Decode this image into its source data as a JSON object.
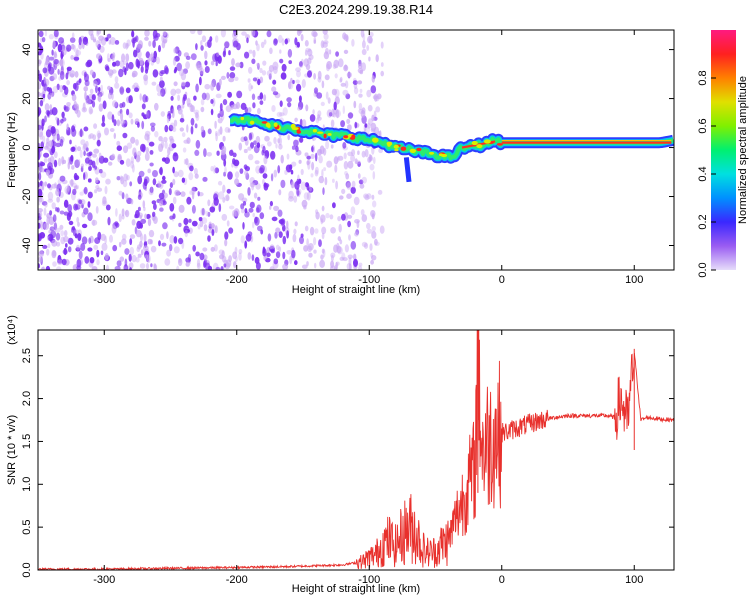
{
  "title": "C2E3.2024.299.19.38.R14",
  "colors": {
    "signal": "#e8302c",
    "noise_purple": "#7a2cf0",
    "noise_light": "#c9a6f4"
  },
  "chart_data": [
    {
      "type": "heatmap",
      "title": "C2E3.2024.299.19.38.R14",
      "xlabel": "Height of straight line (km)",
      "ylabel": "Frequency (Hz)",
      "xlim": [
        -350,
        130
      ],
      "ylim": [
        -50,
        48
      ],
      "xticks": [
        -300,
        -200,
        -100,
        0,
        100
      ],
      "yticks": [
        -40,
        -20,
        0,
        20,
        40
      ],
      "colorbar": {
        "label": "Normalized spectral amplitude",
        "range": [
          0,
          1
        ],
        "ticks": [
          "0.0",
          "0.2",
          "0.4",
          "0.6",
          "0.8"
        ],
        "colormap": [
          "#d9c8f8",
          "#7a2cf0",
          "#1a3bff",
          "#00c8ff",
          "#00f080",
          "#b6f000",
          "#ffd000",
          "#ff6a00",
          "#ff1040",
          "#ff1a80"
        ]
      },
      "track": {
        "x": [
          -205,
          -190,
          -175,
          -160,
          -150,
          -140,
          -130,
          -120,
          -110,
          -100,
          -90,
          -80,
          -70,
          -60,
          -50,
          -40,
          -35,
          -30,
          -25,
          -20,
          -15,
          -10,
          -5,
          0,
          20,
          40,
          60,
          80,
          100,
          120,
          130
        ],
        "y": [
          12,
          11,
          9,
          8,
          7,
          6,
          5,
          5,
          4,
          3,
          2,
          0,
          -1,
          -2,
          -3,
          -4,
          -3,
          0,
          0,
          1,
          1,
          2,
          3,
          2,
          2,
          2,
          2,
          2,
          2,
          2,
          3
        ]
      }
    },
    {
      "type": "line",
      "xlabel": "Height of straight line (km)",
      "ylabel": "SNR (10 * v/v)",
      "y_multiplier": "(x10⁴)",
      "xlim": [
        -350,
        130
      ],
      "ylim": [
        0,
        2.8
      ],
      "xticks": [
        -300,
        -200,
        -100,
        0,
        100
      ],
      "yticks": [
        "0.0",
        "0.5",
        "1.0",
        "1.5",
        "2.0",
        "2.5"
      ],
      "series": [
        {
          "color": "#e8302c",
          "x": [
            -350,
            -300,
            -250,
            -200,
            -160,
            -120,
            -105,
            -100,
            -95,
            -90,
            -85,
            -80,
            -75,
            -70,
            -65,
            -60,
            -55,
            -50,
            -45,
            -40,
            -35,
            -30,
            -25,
            -20,
            -18,
            -15,
            -10,
            -5,
            0,
            5,
            10,
            20,
            30,
            40,
            50,
            60,
            70,
            80,
            85,
            90,
            95,
            100,
            105,
            110,
            120,
            130
          ],
          "y": [
            0.01,
            0.01,
            0.02,
            0.03,
            0.04,
            0.06,
            0.1,
            0.15,
            0.18,
            0.3,
            0.35,
            0.28,
            0.42,
            0.5,
            0.45,
            0.25,
            0.2,
            0.22,
            0.3,
            0.35,
            0.6,
            0.8,
            1.0,
            1.2,
            2.78,
            1.4,
            1.5,
            1.58,
            1.6,
            1.62,
            1.65,
            1.7,
            1.75,
            1.78,
            1.8,
            1.8,
            1.8,
            1.8,
            1.78,
            2.0,
            1.7,
            2.55,
            1.75,
            1.78,
            1.76,
            1.75
          ]
        }
      ]
    }
  ]
}
